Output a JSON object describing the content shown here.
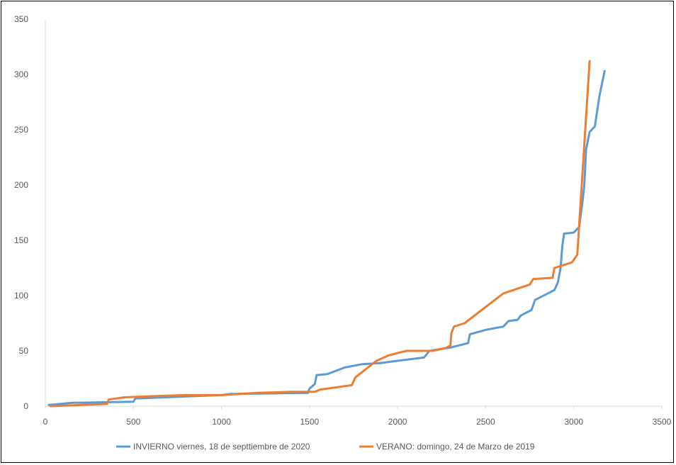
{
  "chart_data": {
    "type": "line",
    "title": "",
    "xlabel": "",
    "ylabel": "",
    "xlim": [
      0,
      3500
    ],
    "ylim": [
      0,
      350
    ],
    "x_ticks": [
      0,
      500,
      1000,
      1500,
      2000,
      2500,
      3000,
      3500
    ],
    "y_ticks": [
      0,
      50,
      100,
      150,
      200,
      250,
      300,
      350
    ],
    "grid": false,
    "legend_position": "bottom",
    "series": [
      {
        "name": "INVIERNO viernes, 18 de septtiembre de 2020",
        "color": "#5B9BD5",
        "points": [
          [
            20,
            1
          ],
          [
            150,
            3
          ],
          [
            500,
            4
          ],
          [
            510,
            7
          ],
          [
            1000,
            10
          ],
          [
            1050,
            11
          ],
          [
            1490,
            12
          ],
          [
            1500,
            16
          ],
          [
            1530,
            20
          ],
          [
            1540,
            28
          ],
          [
            1600,
            29
          ],
          [
            1700,
            35
          ],
          [
            1800,
            38
          ],
          [
            1900,
            39
          ],
          [
            2000,
            41
          ],
          [
            2150,
            44
          ],
          [
            2180,
            50
          ],
          [
            2300,
            53
          ],
          [
            2400,
            57
          ],
          [
            2410,
            65
          ],
          [
            2500,
            69
          ],
          [
            2600,
            72
          ],
          [
            2630,
            77
          ],
          [
            2680,
            78
          ],
          [
            2700,
            82
          ],
          [
            2760,
            87
          ],
          [
            2780,
            96
          ],
          [
            2890,
            105
          ],
          [
            2910,
            112
          ],
          [
            2925,
            125
          ],
          [
            2935,
            145
          ],
          [
            2945,
            156
          ],
          [
            3000,
            157
          ],
          [
            3030,
            162
          ],
          [
            3050,
            185
          ],
          [
            3060,
            200
          ],
          [
            3070,
            232
          ],
          [
            3090,
            248
          ],
          [
            3120,
            253
          ],
          [
            3145,
            280
          ],
          [
            3175,
            303
          ]
        ]
      },
      {
        "name": "VERANO: domingo, 24 de Marzo de 2019",
        "color": "#ED7D31",
        "points": [
          [
            30,
            0
          ],
          [
            350,
            2
          ],
          [
            360,
            6
          ],
          [
            450,
            8
          ],
          [
            600,
            9
          ],
          [
            800,
            10
          ],
          [
            1000,
            10
          ],
          [
            1200,
            12
          ],
          [
            1400,
            13
          ],
          [
            1530,
            13
          ],
          [
            1560,
            15
          ],
          [
            1650,
            17
          ],
          [
            1740,
            19
          ],
          [
            1760,
            26
          ],
          [
            1880,
            41
          ],
          [
            1950,
            46
          ],
          [
            2050,
            50
          ],
          [
            2200,
            50
          ],
          [
            2280,
            53
          ],
          [
            2300,
            55
          ],
          [
            2305,
            66
          ],
          [
            2320,
            72
          ],
          [
            2380,
            75
          ],
          [
            2600,
            102
          ],
          [
            2750,
            110
          ],
          [
            2770,
            115
          ],
          [
            2880,
            116
          ],
          [
            2890,
            125
          ],
          [
            2990,
            130
          ],
          [
            3020,
            137
          ],
          [
            3090,
            312
          ]
        ]
      }
    ]
  }
}
